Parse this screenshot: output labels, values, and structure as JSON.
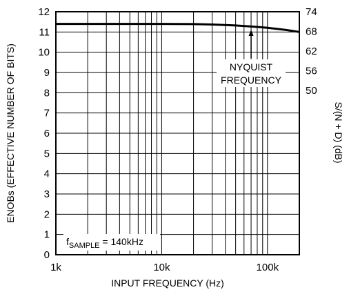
{
  "chart_data": {
    "type": "line",
    "xscale": "log",
    "xlim": [
      1000,
      200000
    ],
    "ylim": [
      0,
      12
    ],
    "y2lim": [
      0,
      74
    ],
    "xlabel": "INPUT FREQUENCY (Hz)",
    "ylabel": "ENOBs (EFFECTIVE NUMBER OF BITS)",
    "y2label": "S/(N + D) (dB)",
    "grid": true,
    "x_ticks": [
      {
        "value": 1000,
        "label": "1k"
      },
      {
        "value": 10000,
        "label": "10k"
      },
      {
        "value": 100000,
        "label": "100k"
      }
    ],
    "y_ticks": [
      {
        "value": 0,
        "label": "0"
      },
      {
        "value": 1,
        "label": "1"
      },
      {
        "value": 2,
        "label": "2"
      },
      {
        "value": 3,
        "label": "3"
      },
      {
        "value": 4,
        "label": "4"
      },
      {
        "value": 5,
        "label": "5"
      },
      {
        "value": 6,
        "label": "6"
      },
      {
        "value": 7,
        "label": "7"
      },
      {
        "value": 8,
        "label": "8"
      },
      {
        "value": 9,
        "label": "9"
      },
      {
        "value": 10,
        "label": "10"
      },
      {
        "value": 11,
        "label": "11"
      },
      {
        "value": 12,
        "label": "12"
      }
    ],
    "y2_ticks": [
      {
        "value": 74,
        "label": "74"
      },
      {
        "value": 68,
        "label": "68"
      },
      {
        "value": 62,
        "label": "62"
      },
      {
        "value": 56,
        "label": "56"
      },
      {
        "value": 50,
        "label": "50"
      }
    ],
    "series": [
      {
        "x": [
          1000,
          2000,
          5000,
          10000,
          20000,
          30000,
          50000,
          70000,
          100000,
          150000,
          200000
        ],
        "y": [
          11.4,
          11.4,
          11.4,
          11.4,
          11.39,
          11.37,
          11.32,
          11.27,
          11.21,
          11.1,
          11.0
        ]
      }
    ],
    "annotations": {
      "nyquist": {
        "line1": "NYQUIST",
        "line2": "FREQUENCY",
        "x": 70000,
        "y": 11.25
      },
      "fsample": {
        "f": "f",
        "sub": "SAMPLE",
        "rest": " = 140kHz"
      }
    }
  }
}
